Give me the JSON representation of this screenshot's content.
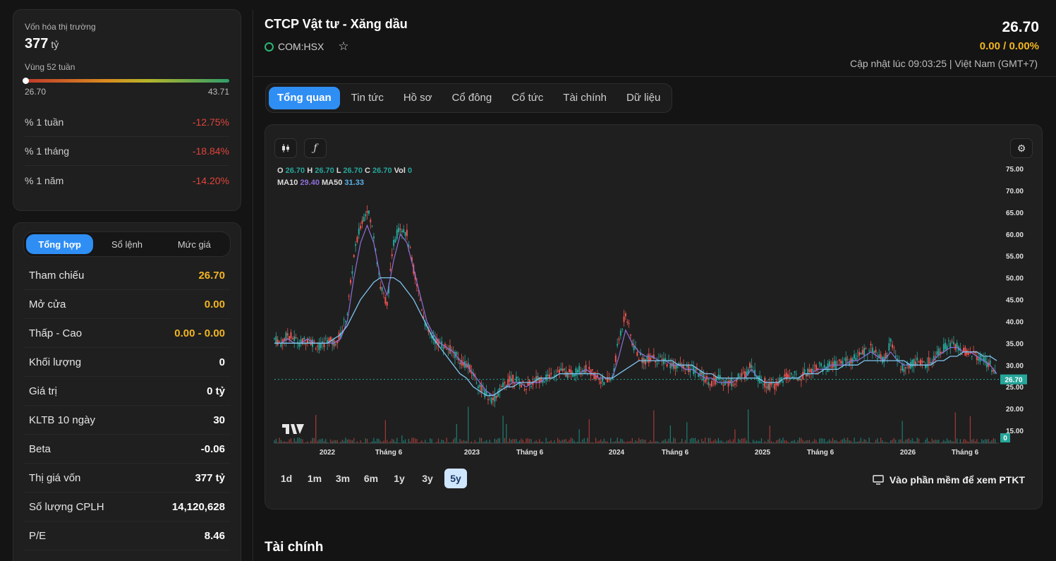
{
  "market_cap": {
    "label": "Vốn hóa thị trường",
    "value": "377",
    "unit": "tỷ"
  },
  "range52": {
    "label": "Vùng 52 tuần",
    "low": "26.70",
    "high": "43.71"
  },
  "performance": [
    {
      "label": "% 1 tuần",
      "value": "-12.75%"
    },
    {
      "label": "% 1 tháng",
      "value": "-18.84%"
    },
    {
      "label": "% 1 năm",
      "value": "-14.20%"
    }
  ],
  "stats_tabs": [
    "Tổng hợp",
    "Sổ lệnh",
    "Mức giá"
  ],
  "stats": [
    {
      "label": "Tham chiếu",
      "value": "26.70",
      "color": "yellow"
    },
    {
      "label": "Mở cửa",
      "value": "0.00",
      "color": "yellow"
    },
    {
      "label": "Thấp - Cao",
      "value": "0.00 - 0.00",
      "color": "yellow"
    },
    {
      "label": "Khối lượng",
      "value": "0"
    },
    {
      "label": "Giá trị",
      "value": "0 tỷ"
    },
    {
      "label": "KLTB 10 ngày",
      "value": "30"
    },
    {
      "label": "Beta",
      "value": "-0.06"
    },
    {
      "label": "Thị giá vốn",
      "value": "377 tỷ"
    },
    {
      "label": "Số lượng CPLH",
      "value": "14,120,628"
    },
    {
      "label": "P/E",
      "value": "8.46"
    }
  ],
  "header": {
    "title": "CTCP Vật tư - Xăng dầu",
    "ticker": "COM:HSX",
    "price": "26.70",
    "change": "0.00 / 0.00%",
    "updated": "Cập nhật lúc 09:03:25 | Việt Nam (GMT+7)"
  },
  "tabs": [
    "Tổng quan",
    "Tin tức",
    "Hồ sơ",
    "Cổ đông",
    "Cổ tức",
    "Tài chính",
    "Dữ liệu"
  ],
  "legend": {
    "o_label": "O",
    "o": "26.70",
    "h_label": "H",
    "h": "26.70",
    "l_label": "L",
    "l": "26.70",
    "c_label": "C",
    "c": "26.70",
    "vol_label": "Vol",
    "vol": "0",
    "ma10_label": "MA10",
    "ma10": "29.40",
    "ma50_label": "MA50",
    "ma50": "31.33"
  },
  "ranges": [
    "1d",
    "1m",
    "3m",
    "6m",
    "1y",
    "3y",
    "5y"
  ],
  "ptkt_label": "Vào phần mềm để xem PTKT",
  "section_title": "Tài chính",
  "colors": {
    "accent": "#2f8ef4",
    "up": "#26a69a",
    "down": "#ef5350",
    "yellow": "#f2b51f"
  },
  "chart_data": {
    "type": "candlestick",
    "y_ticks": [
      "75.00",
      "70.00",
      "65.00",
      "60.00",
      "55.00",
      "50.00",
      "45.00",
      "40.00",
      "35.00",
      "30.00",
      "25.00",
      "20.00",
      "15.00"
    ],
    "x_ticks": [
      "2022",
      "Tháng 6",
      "2023",
      "Tháng 6",
      "2024",
      "Tháng 6",
      "2025",
      "Tháng 6",
      "2026",
      "Tháng 6"
    ],
    "last_price_label": "26.70",
    "volume_label": "0",
    "ylim": [
      15,
      75
    ],
    "price_path": [
      36,
      35,
      37,
      36,
      35,
      36,
      35,
      34,
      36,
      35,
      37,
      42,
      55,
      62,
      66,
      60,
      48,
      44,
      58,
      62,
      60,
      52,
      45,
      38,
      36,
      35,
      34,
      33,
      31,
      30,
      28,
      25,
      23,
      22,
      24,
      26,
      27,
      26,
      25,
      26,
      27,
      27,
      28,
      29,
      28,
      28,
      29,
      29,
      28,
      27,
      26,
      27,
      36,
      42,
      35,
      32,
      31,
      32,
      31,
      31,
      30,
      30,
      29,
      29,
      28,
      27,
      26,
      27,
      26,
      26,
      27,
      28,
      30,
      27,
      26,
      25,
      26,
      27,
      28,
      27,
      28,
      29,
      30,
      29,
      30,
      30,
      31,
      31,
      32,
      33,
      34,
      32,
      31,
      35,
      31,
      29,
      30,
      31,
      30,
      31,
      33,
      34,
      35,
      34,
      33,
      33,
      32,
      31,
      30,
      27
    ],
    "ma50_path": [
      35,
      35,
      35,
      35,
      35,
      35,
      35,
      35,
      35,
      36,
      37,
      39,
      42,
      45,
      47,
      49,
      50,
      50,
      50,
      49,
      47,
      45,
      42,
      39,
      36,
      34,
      32,
      30,
      28,
      27,
      25,
      24,
      23,
      23,
      24,
      25,
      25,
      26,
      26,
      26,
      27,
      27,
      27,
      28,
      28,
      28,
      28,
      28,
      28,
      28,
      27,
      27,
      28,
      29,
      30,
      31,
      31,
      31,
      31,
      31,
      31,
      30,
      30,
      30,
      29,
      28,
      28,
      27,
      27,
      27,
      27,
      27,
      27,
      27,
      26,
      26,
      26,
      27,
      27,
      27,
      28,
      28,
      28,
      29,
      29,
      29,
      30,
      30,
      30,
      31,
      31,
      31,
      31,
      31,
      31,
      31,
      30,
      30,
      30,
      30,
      31,
      31,
      32,
      32,
      33,
      33,
      33,
      32,
      32,
      31
    ],
    "ma10_path": [
      35,
      35,
      36,
      35,
      35,
      36,
      35,
      35,
      35,
      35,
      36,
      40,
      50,
      58,
      62,
      58,
      50,
      46,
      54,
      60,
      58,
      52,
      46,
      40,
      37,
      35,
      34,
      33,
      31,
      30,
      28,
      26,
      24,
      23,
      24,
      25,
      26,
      26,
      25,
      26,
      26,
      27,
      27,
      28,
      28,
      28,
      28,
      29,
      28,
      27,
      27,
      27,
      32,
      38,
      35,
      33,
      32,
      32,
      31,
      31,
      30,
      30,
      29,
      29,
      28,
      27,
      27,
      26,
      26,
      26,
      27,
      27,
      29,
      27,
      26,
      26,
      26,
      27,
      27,
      27,
      28,
      28,
      29,
      29,
      30,
      30,
      30,
      31,
      31,
      32,
      33,
      32,
      31,
      33,
      31,
      30,
      30,
      30,
      30,
      30,
      32,
      33,
      34,
      34,
      33,
      33,
      32,
      31,
      30,
      28
    ]
  }
}
